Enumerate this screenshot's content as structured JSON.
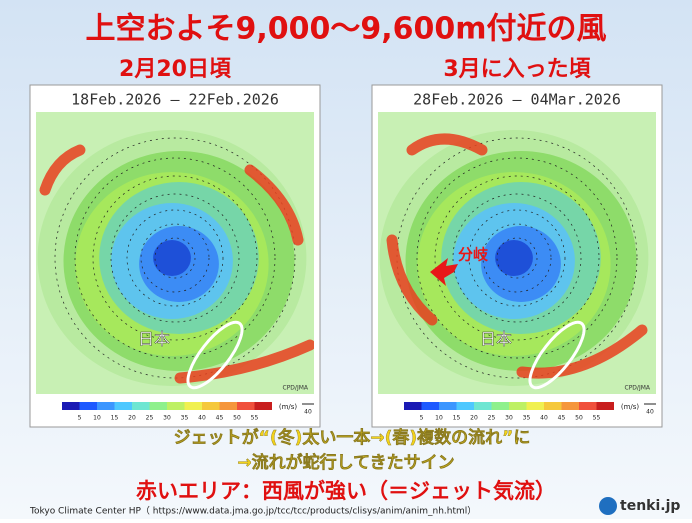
{
  "header": {
    "title": "上空およそ9,000～9,600m付近の風"
  },
  "panels": [
    {
      "label": "2月20日頃",
      "map_title": "18Feb.2026 – 22Feb.2026",
      "credit": "CPD/JMA",
      "annotations": [
        "日本"
      ]
    },
    {
      "label": "3月に入った頃",
      "map_title": "28Feb.2026 – 04Mar.2026",
      "credit": "CPD/JMA",
      "annotations": [
        "日本",
        "分岐"
      ]
    }
  ],
  "colorbar": {
    "ticks": [
      "5",
      "10",
      "15",
      "20",
      "25",
      "30",
      "35",
      "40",
      "45",
      "50",
      "55"
    ],
    "unit": "(m/s)",
    "arrow_label": "40"
  },
  "captions": [
    "ジェットが“(冬)太い一本→(春)複数の流れ”に",
    "→流れが蛇行してきたサイン",
    "赤いエリア：西風が強い（＝ジェット気流）"
  ],
  "source": "Tokyo Climate Center HP（ https://www.data.jma.go.jp/tcc/tcc/products/clisys/anim/anim_nh.html）",
  "logo": "tenki.jp"
}
